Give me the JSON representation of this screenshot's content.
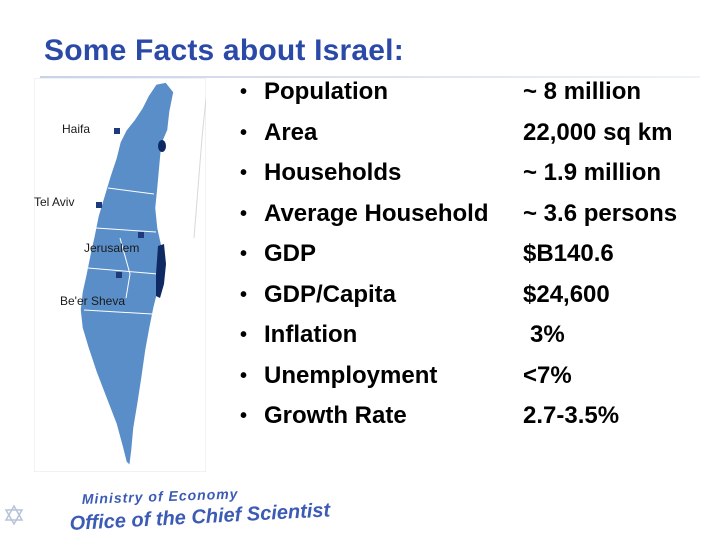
{
  "slide": {
    "title": "Some Facts about Israel:"
  },
  "map": {
    "cities": [
      {
        "name": "Haifa"
      },
      {
        "name": "Tel Aviv"
      },
      {
        "name": "Jerusalem"
      },
      {
        "name": "Be'er Sheva"
      }
    ],
    "land_color": "#5a8ec9",
    "water_color": "#0f2a63"
  },
  "facts": [
    {
      "label": "Population",
      "value": "~ 8 million"
    },
    {
      "label": "Area",
      "value": "22,000 sq km"
    },
    {
      "label": "Households",
      "value": "~ 1.9 million"
    },
    {
      "label": "Average Household",
      "value": "~ 3.6 persons"
    },
    {
      "label": "GDP",
      "value": "$B140.6"
    },
    {
      "label": "GDP/Capita",
      "value": "$24,600"
    },
    {
      "label": "Inflation",
      "value": "3%"
    },
    {
      "label": "Unemployment",
      "value": "<7%"
    },
    {
      "label": "Growth Rate",
      "value": "2.7-3.5%"
    }
  ],
  "logo": {
    "line1": "Ministry of Economy",
    "line2": "Office of the Chief Scientist",
    "icon": "star-of-david-icon"
  },
  "colors": {
    "title": "#2b4aa8",
    "logo": "#3b5bb5"
  }
}
